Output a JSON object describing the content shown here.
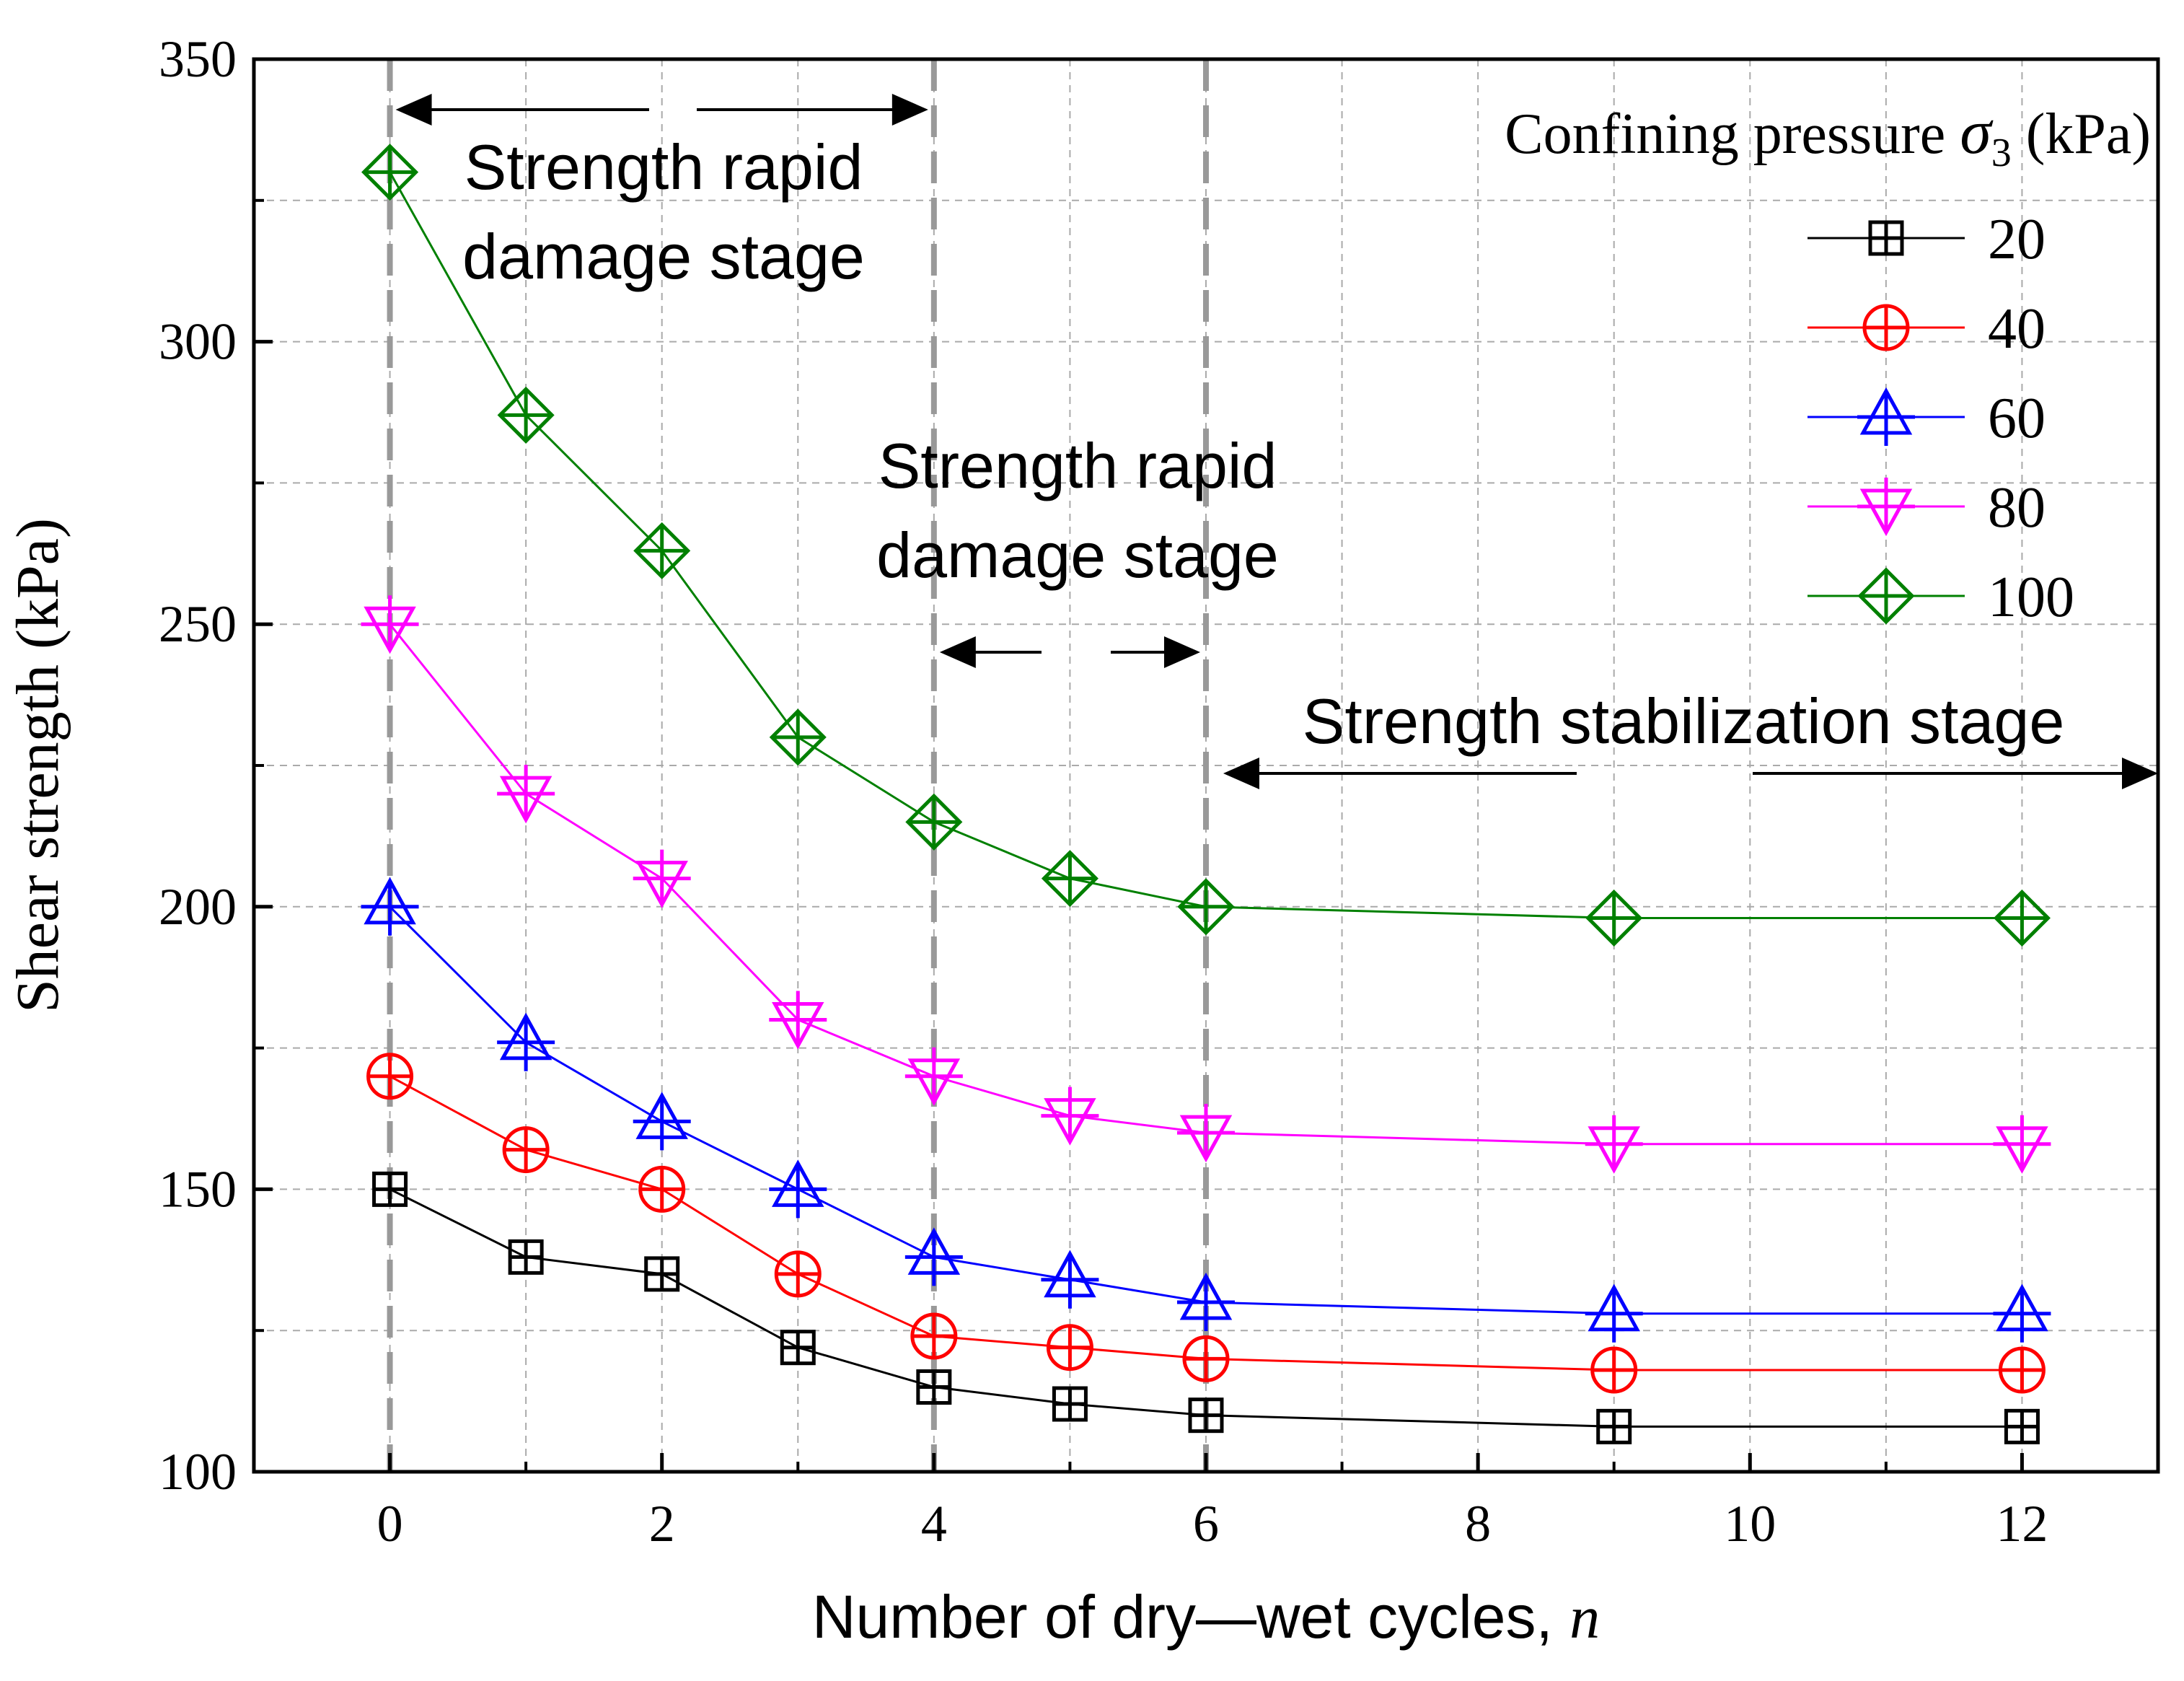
{
  "chart_data": {
    "type": "line",
    "title": "",
    "xlabel": "Number of dry—wet cycles, ",
    "xlabel_var": "n",
    "ylabel": "Shear strength (kPa)",
    "xlim": [
      -1,
      13
    ],
    "ylim": [
      100,
      350
    ],
    "x_ticks": [
      0,
      2,
      4,
      6,
      8,
      10,
      12
    ],
    "x_minor_ticks": [
      1,
      3,
      5,
      7,
      9,
      11
    ],
    "y_ticks": [
      100,
      150,
      200,
      250,
      300,
      350
    ],
    "y_minor_ticks": [
      125,
      175,
      225,
      275,
      325
    ],
    "grid": true,
    "stage_boundaries": [
      0,
      4,
      6
    ],
    "legend": {
      "title": "Confining pressure ",
      "title_symbol": "σ",
      "title_subscript": "3",
      "title_unit": " (kPa)",
      "placement": "top-right"
    },
    "series": [
      {
        "name": "20",
        "color": "#000000",
        "marker": "square",
        "x": [
          0,
          1,
          2,
          3,
          4,
          5,
          6,
          9,
          12
        ],
        "values": [
          150,
          138,
          135,
          122,
          115,
          112,
          110,
          108,
          108
        ]
      },
      {
        "name": "40",
        "color": "#ff0000",
        "marker": "circle",
        "x": [
          0,
          1,
          2,
          3,
          4,
          5,
          6,
          9,
          12
        ],
        "values": [
          170,
          157,
          150,
          135,
          124,
          122,
          120,
          118,
          118
        ]
      },
      {
        "name": "60",
        "color": "#0000ff",
        "marker": "triangle-up",
        "x": [
          0,
          1,
          2,
          3,
          4,
          5,
          6,
          9,
          12
        ],
        "values": [
          200,
          176,
          162,
          150,
          138,
          134,
          130,
          128,
          128
        ]
      },
      {
        "name": "80",
        "color": "#ff00ff",
        "marker": "triangle-down",
        "x": [
          0,
          1,
          2,
          3,
          4,
          5,
          6,
          9,
          12
        ],
        "values": [
          250,
          220,
          205,
          180,
          170,
          163,
          160,
          158,
          158
        ]
      },
      {
        "name": "100",
        "color": "#008000",
        "marker": "diamond",
        "x": [
          0,
          1,
          2,
          3,
          4,
          5,
          6,
          9,
          12
        ],
        "values": [
          330,
          287,
          263,
          230,
          215,
          205,
          200,
          198,
          198
        ]
      }
    ],
    "annotations": [
      {
        "id": "stage1",
        "lines": [
          "Strength rapid",
          "damage stage"
        ],
        "from_x": 0,
        "to_x": 4
      },
      {
        "id": "stage2",
        "lines": [
          "Strength rapid",
          "damage stage"
        ],
        "from_x": 4,
        "to_x": 6
      },
      {
        "id": "stage3",
        "lines": [
          "Strength stabilization stage"
        ],
        "from_x": 6,
        "to_x": 13
      }
    ]
  }
}
